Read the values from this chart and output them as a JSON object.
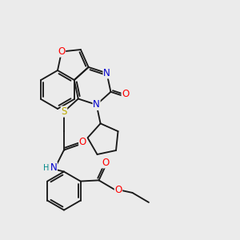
{
  "background_color": "#ebebeb",
  "bond_color": "#1a1a1a",
  "atom_colors": {
    "O": "#ff0000",
    "N": "#0000cc",
    "S": "#bbaa00",
    "H": "#008888",
    "C": "#1a1a1a"
  },
  "figsize": [
    3.0,
    3.0
  ],
  "dpi": 100,
  "lw": 1.35,
  "fontsize": 8.5
}
